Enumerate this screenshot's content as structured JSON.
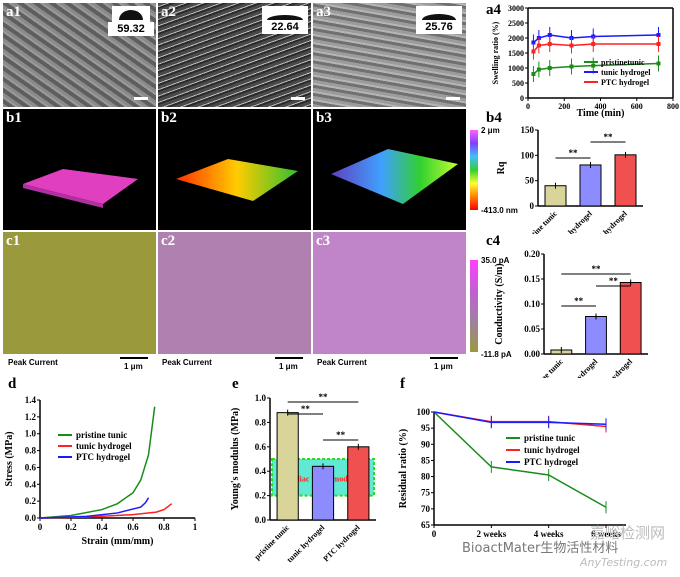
{
  "labels": {
    "a1": "a1",
    "a2": "a2",
    "a3": "a3",
    "a4": "a4",
    "b1": "b1",
    "b2": "b2",
    "b3": "b3",
    "b4": "b4",
    "c1": "c1",
    "c2": "c2",
    "c3": "c3",
    "c4": "c4",
    "d": "d",
    "e": "e",
    "f": "f"
  },
  "contact_angles": [
    "59.32",
    "22.64",
    "25.76"
  ],
  "afm_scale": {
    "top": "2 μm",
    "bottom": "-413.0 nm"
  },
  "current_scale": {
    "top": "35.0 pA",
    "bottom": "-11.8 pA"
  },
  "c_captions": {
    "peak": "Peak Current",
    "scale": "1 μm"
  },
  "colors": {
    "green": "#1a8c1a",
    "blue": "#1a1aff",
    "red": "#ff2020",
    "khaki": "#d9d59a",
    "lavender": "#8c8cff",
    "salmon": "#f05050"
  },
  "chart_data": [
    {
      "id": "a4",
      "type": "line",
      "xlabel": "Time (min)",
      "ylabel": "Swelling ratio (%)",
      "xlim": [
        0,
        800
      ],
      "ylim": [
        0,
        3000
      ],
      "xticks": [
        0,
        200,
        400,
        600,
        800
      ],
      "yticks": [
        0,
        500,
        1000,
        1500,
        2000,
        2500,
        3000
      ],
      "series": [
        {
          "name": "pristinetunic",
          "color": "#1a8c1a",
          "x": [
            30,
            60,
            120,
            240,
            360,
            720
          ],
          "y": [
            800,
            950,
            1000,
            1050,
            1080,
            1150
          ]
        },
        {
          "name": "tunic hydrogel",
          "color": "#1a1aff",
          "x": [
            30,
            60,
            120,
            240,
            360,
            720
          ],
          "y": [
            1850,
            2000,
            2100,
            2000,
            2050,
            2100
          ]
        },
        {
          "name": "PTC hydrogel",
          "color": "#ff2020",
          "x": [
            30,
            60,
            120,
            240,
            360,
            720
          ],
          "y": [
            1550,
            1750,
            1800,
            1750,
            1800,
            1800
          ]
        }
      ]
    },
    {
      "id": "b4",
      "type": "bar",
      "ylabel": "Rq",
      "ylim": [
        0,
        150
      ],
      "yticks": [
        0,
        50,
        100,
        150
      ],
      "categories": [
        "pristine tunic",
        "tunic hydrogel",
        "PTC hydrogel"
      ],
      "values": [
        40,
        81,
        101
      ],
      "colors": [
        "#d9d59a",
        "#8c8cff",
        "#f05050"
      ],
      "sig": [
        "**",
        "**"
      ]
    },
    {
      "id": "c4",
      "type": "bar",
      "ylabel": "Conductivity (S/m)",
      "ylim": [
        0,
        0.2
      ],
      "yticks": [
        0.0,
        0.05,
        0.1,
        0.15,
        0.2
      ],
      "categories": [
        "pristine tunic",
        "tunic hydrogel",
        "PTC hydrogel"
      ],
      "values": [
        0.008,
        0.075,
        0.143
      ],
      "colors": [
        "#d9d59a",
        "#8c8cff",
        "#f05050"
      ],
      "sig": [
        "**",
        "**",
        "**"
      ]
    },
    {
      "id": "d",
      "type": "line",
      "xlabel": "Strain (mm/mm)",
      "ylabel": "Stress (MPa)",
      "xlim": [
        0,
        1.0
      ],
      "ylim": [
        0,
        1.4
      ],
      "xticks": [
        0,
        0.2,
        0.4,
        0.6,
        0.8,
        1.0
      ],
      "yticks": [
        0,
        0.2,
        0.4,
        0.6,
        0.8,
        1.0,
        1.2,
        1.4
      ],
      "series": [
        {
          "name": "pristine tunic",
          "color": "#1a8c1a",
          "x": [
            0,
            0.2,
            0.4,
            0.5,
            0.6,
            0.65,
            0.7,
            0.74
          ],
          "y": [
            0,
            0.03,
            0.1,
            0.17,
            0.3,
            0.45,
            0.75,
            1.32
          ]
        },
        {
          "name": "tunic hydrogel",
          "color": "#ff2020",
          "x": [
            0,
            0.3,
            0.6,
            0.75,
            0.8,
            0.85
          ],
          "y": [
            0,
            0.01,
            0.04,
            0.07,
            0.1,
            0.17
          ]
        },
        {
          "name": "PTC hydrogel",
          "color": "#1a1aff",
          "x": [
            0,
            0.3,
            0.5,
            0.65,
            0.68,
            0.7
          ],
          "y": [
            0,
            0.02,
            0.06,
            0.13,
            0.18,
            0.24
          ]
        }
      ]
    },
    {
      "id": "e",
      "type": "bar",
      "ylabel": "Young's modulus (MPa)",
      "ylim": [
        0,
        1.0
      ],
      "yticks": [
        0.0,
        0.2,
        0.4,
        0.6,
        0.8,
        1.0
      ],
      "categories": [
        "pristine tunic",
        "tunic hydrogel",
        "PTC hydrogel"
      ],
      "values": [
        0.88,
        0.44,
        0.6
      ],
      "colors": [
        "#d9d59a",
        "#8c8cff",
        "#f05050"
      ],
      "sig": [
        "**",
        "**",
        "**"
      ],
      "band_label": "cardiac tissue modulus",
      "band_range": [
        0.2,
        0.5
      ]
    },
    {
      "id": "f",
      "type": "line",
      "xlabel": "",
      "ylabel": "Residual ratio (%)",
      "ylim": [
        65,
        100
      ],
      "yticks": [
        65,
        70,
        75,
        80,
        85,
        90,
        95,
        100
      ],
      "categories": [
        "0",
        "2 weeks",
        "4 weeks",
        "6 weeks"
      ],
      "series": [
        {
          "name": "pristine tunic",
          "color": "#1a8c1a",
          "y": [
            100,
            83,
            80.5,
            70.5
          ]
        },
        {
          "name": "tunic hydrogel",
          "color": "#ff2020",
          "y": [
            100,
            97,
            97,
            95.5
          ]
        },
        {
          "name": "PTC hydrogel",
          "color": "#1a1aff",
          "y": [
            100,
            96.8,
            96.8,
            96.2
          ]
        }
      ]
    }
  ],
  "watermark": {
    "line1": "BioactMater生物活性材料",
    "line2": "嘉峪检测网",
    "line3": "AnyTesting.com"
  }
}
